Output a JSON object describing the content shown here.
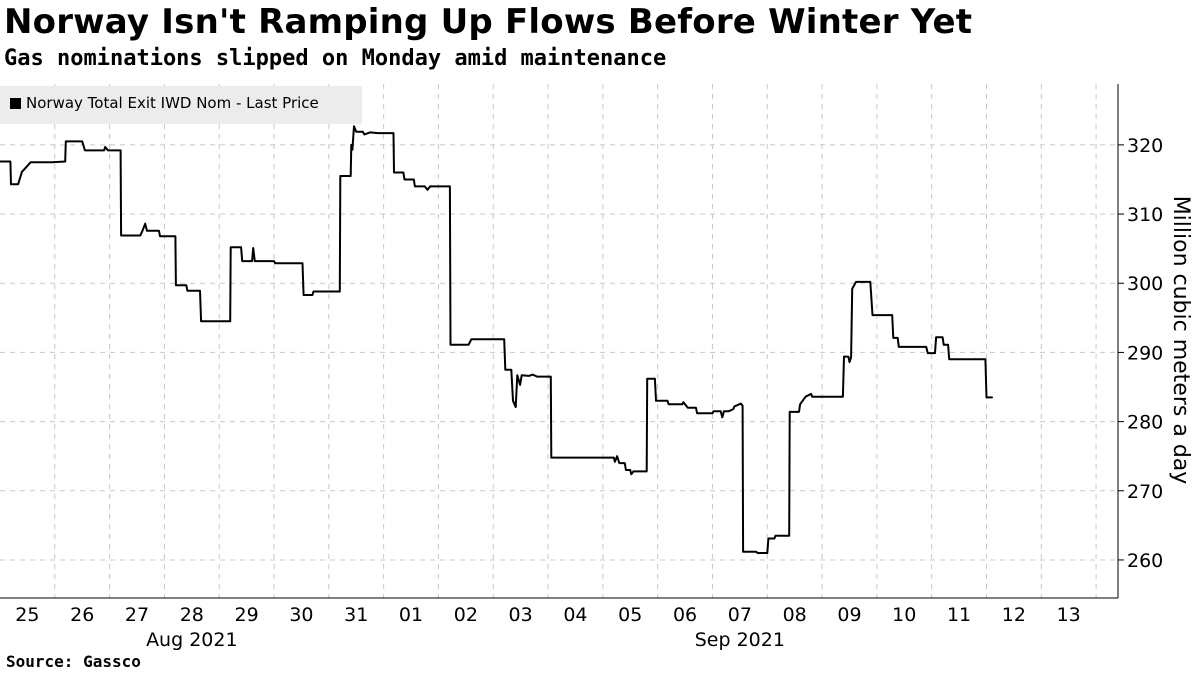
{
  "title": "Norway Isn't Ramping Up Flows Before Winter Yet",
  "subtitle": "Gas nominations slipped on Monday amid maintenance",
  "source": "Source: Gassco",
  "colors": {
    "line": "#000000",
    "legend_bg": "#ececec",
    "grid": "#c8c8c8"
  },
  "chart_data": {
    "type": "line",
    "title": "Norway Isn't Ramping Up Flows Before Winter Yet",
    "subtitle": "Gas nominations slipped on Monday amid maintenance",
    "ylabel": "Million cubic meters a day",
    "ylim": [
      254.5,
      328.8
    ],
    "yticks": [
      260,
      270,
      280,
      290,
      300,
      310,
      320
    ],
    "xlim": [
      0,
      20.4
    ],
    "x_unit": "days from Jul 25 2021",
    "xticks": [
      {
        "x": 0.5,
        "label": "25"
      },
      {
        "x": 1.5,
        "label": "26"
      },
      {
        "x": 2.5,
        "label": "27"
      },
      {
        "x": 3.5,
        "label": "28"
      },
      {
        "x": 4.5,
        "label": "29"
      },
      {
        "x": 5.5,
        "label": "30"
      },
      {
        "x": 6.5,
        "label": "31"
      },
      {
        "x": 7.5,
        "label": "01"
      },
      {
        "x": 8.5,
        "label": "02"
      },
      {
        "x": 9.5,
        "label": "03"
      },
      {
        "x": 10.5,
        "label": "04"
      },
      {
        "x": 11.5,
        "label": "05"
      },
      {
        "x": 12.5,
        "label": "06"
      },
      {
        "x": 13.5,
        "label": "07"
      },
      {
        "x": 14.5,
        "label": "08"
      },
      {
        "x": 15.5,
        "label": "09"
      },
      {
        "x": 16.5,
        "label": "10"
      },
      {
        "x": 17.5,
        "label": "11"
      },
      {
        "x": 18.5,
        "label": "12"
      },
      {
        "x": 19.5,
        "label": "13"
      }
    ],
    "month_labels": [
      {
        "x": 3.5,
        "label": "Aug 2021"
      },
      {
        "x": 13.5,
        "label": "Sep 2021"
      }
    ],
    "grid": true,
    "legend_position": "top-left",
    "series": [
      {
        "name": "Norway Total Exit IWD Nom - Last Price",
        "color": "#000000",
        "points": [
          [
            0.0,
            317.6
          ],
          [
            0.19,
            317.6
          ],
          [
            0.2,
            314.3
          ],
          [
            0.33,
            314.3
          ],
          [
            0.4,
            316.1
          ],
          [
            0.56,
            317.5
          ],
          [
            0.95,
            317.5
          ],
          [
            1.19,
            317.6
          ],
          [
            1.2,
            320.5
          ],
          [
            1.5,
            320.5
          ],
          [
            1.55,
            319.2
          ],
          [
            1.9,
            319.2
          ],
          [
            1.92,
            319.7
          ],
          [
            1.97,
            319.2
          ],
          [
            2.2,
            319.2
          ],
          [
            2.21,
            306.9
          ],
          [
            2.56,
            306.9
          ],
          [
            2.6,
            307.6
          ],
          [
            2.65,
            308.6
          ],
          [
            2.68,
            307.6
          ],
          [
            2.9,
            307.6
          ],
          [
            2.92,
            306.8
          ],
          [
            3.2,
            306.8
          ],
          [
            3.21,
            299.7
          ],
          [
            3.4,
            299.7
          ],
          [
            3.42,
            298.9
          ],
          [
            3.65,
            298.9
          ],
          [
            3.67,
            294.5
          ],
          [
            4.2,
            294.5
          ],
          [
            4.21,
            305.2
          ],
          [
            4.4,
            305.2
          ],
          [
            4.42,
            303.2
          ],
          [
            4.6,
            303.2
          ],
          [
            4.62,
            305.1
          ],
          [
            4.65,
            303.2
          ],
          [
            5.0,
            303.2
          ],
          [
            5.02,
            302.9
          ],
          [
            5.52,
            302.9
          ],
          [
            5.54,
            298.3
          ],
          [
            5.7,
            298.3
          ],
          [
            5.72,
            298.8
          ],
          [
            6.2,
            298.8
          ],
          [
            6.21,
            315.5
          ],
          [
            6.4,
            315.5
          ],
          [
            6.41,
            320.0
          ],
          [
            6.43,
            319.3
          ],
          [
            6.46,
            322.7
          ],
          [
            6.5,
            321.9
          ],
          [
            6.62,
            321.9
          ],
          [
            6.65,
            321.5
          ],
          [
            6.75,
            321.8
          ],
          [
            6.9,
            321.7
          ],
          [
            7.18,
            321.7
          ],
          [
            7.19,
            316.0
          ],
          [
            7.36,
            316.0
          ],
          [
            7.38,
            315.0
          ],
          [
            7.55,
            315.0
          ],
          [
            7.57,
            314.0
          ],
          [
            7.75,
            314.0
          ],
          [
            7.8,
            313.5
          ],
          [
            7.85,
            314.0
          ],
          [
            8.21,
            314.0
          ],
          [
            8.22,
            291.1
          ],
          [
            8.55,
            291.1
          ],
          [
            8.6,
            291.9
          ],
          [
            9.2,
            291.9
          ],
          [
            9.22,
            287.5
          ],
          [
            9.33,
            287.5
          ],
          [
            9.36,
            283.0
          ],
          [
            9.41,
            282.1
          ],
          [
            9.44,
            286.7
          ],
          [
            9.49,
            285.3
          ],
          [
            9.52,
            286.7
          ],
          [
            9.65,
            286.6
          ],
          [
            9.72,
            286.8
          ],
          [
            9.8,
            286.5
          ],
          [
            10.05,
            286.5
          ],
          [
            10.06,
            274.8
          ],
          [
            10.8,
            274.8
          ],
          [
            11.0,
            274.8
          ],
          [
            11.2,
            274.8
          ],
          [
            11.22,
            274.2
          ],
          [
            11.26,
            275.0
          ],
          [
            11.3,
            274.0
          ],
          [
            11.4,
            274.0
          ],
          [
            11.42,
            273.0
          ],
          [
            11.5,
            273.0
          ],
          [
            11.52,
            272.4
          ],
          [
            11.56,
            272.8
          ],
          [
            11.8,
            272.8
          ],
          [
            11.81,
            286.2
          ],
          [
            11.95,
            286.2
          ],
          [
            11.97,
            283.0
          ],
          [
            12.18,
            283.0
          ],
          [
            12.2,
            282.5
          ],
          [
            12.45,
            282.5
          ],
          [
            12.47,
            282.8
          ],
          [
            12.55,
            282.0
          ],
          [
            12.7,
            282.0
          ],
          [
            12.72,
            281.2
          ],
          [
            13.0,
            281.2
          ],
          [
            13.02,
            281.5
          ],
          [
            13.15,
            281.5
          ],
          [
            13.18,
            280.6
          ],
          [
            13.21,
            281.5
          ],
          [
            13.3,
            281.5
          ],
          [
            13.38,
            281.8
          ],
          [
            13.4,
            282.2
          ],
          [
            13.52,
            282.6
          ],
          [
            13.55,
            282.3
          ],
          [
            13.56,
            261.2
          ],
          [
            13.8,
            261.2
          ],
          [
            13.82,
            261.0
          ],
          [
            14.0,
            261.0
          ],
          [
            14.02,
            263.1
          ],
          [
            14.13,
            263.1
          ],
          [
            14.15,
            263.5
          ],
          [
            14.4,
            263.5
          ],
          [
            14.41,
            281.4
          ],
          [
            14.58,
            281.4
          ],
          [
            14.6,
            282.5
          ],
          [
            14.7,
            283.6
          ],
          [
            14.8,
            284.0
          ],
          [
            14.82,
            283.6
          ],
          [
            15.38,
            283.6
          ],
          [
            15.4,
            289.4
          ],
          [
            15.48,
            289.4
          ],
          [
            15.5,
            288.6
          ],
          [
            15.53,
            289.3
          ],
          [
            15.55,
            299.2
          ],
          [
            15.62,
            300.2
          ],
          [
            15.88,
            300.2
          ],
          [
            15.92,
            295.4
          ],
          [
            16.28,
            295.4
          ],
          [
            16.3,
            292.1
          ],
          [
            16.38,
            292.1
          ],
          [
            16.4,
            290.8
          ],
          [
            16.9,
            290.8
          ],
          [
            16.93,
            289.9
          ],
          [
            17.06,
            289.9
          ],
          [
            17.08,
            292.2
          ],
          [
            17.2,
            292.2
          ],
          [
            17.22,
            291.1
          ],
          [
            17.3,
            291.1
          ],
          [
            17.32,
            289.0
          ],
          [
            17.98,
            289.0
          ],
          [
            18.0,
            283.5
          ],
          [
            18.1,
            283.5
          ]
        ]
      }
    ]
  }
}
